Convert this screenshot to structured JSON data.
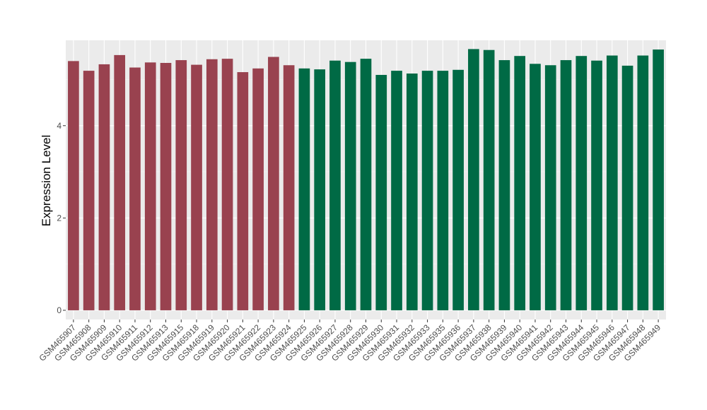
{
  "chart_data": {
    "type": "bar",
    "title": "",
    "xlabel": "",
    "ylabel": "Expression Level",
    "ylim": [
      -0.2,
      5.85
    ],
    "yticks": [
      0,
      2,
      4
    ],
    "grid": true,
    "panel_background": "#ebebeb",
    "categories": [
      "GSM465907",
      "GSM465908",
      "GSM465909",
      "GSM465910",
      "GSM465911",
      "GSM465912",
      "GSM465913",
      "GSM465915",
      "GSM465918",
      "GSM465919",
      "GSM465920",
      "GSM465921",
      "GSM465922",
      "GSM465923",
      "GSM465924",
      "GSM465925",
      "GSM465926",
      "GSM465927",
      "GSM465928",
      "GSM465929",
      "GSM465930",
      "GSM465931",
      "GSM465932",
      "GSM465933",
      "GSM465935",
      "GSM465936",
      "GSM465937",
      "GSM465938",
      "GSM465939",
      "GSM465940",
      "GSM465941",
      "GSM465942",
      "GSM465943",
      "GSM465944",
      "GSM465945",
      "GSM465946",
      "GSM465947",
      "GSM465948",
      "GSM465949"
    ],
    "values": [
      5.4,
      5.19,
      5.33,
      5.53,
      5.26,
      5.37,
      5.36,
      5.42,
      5.32,
      5.44,
      5.45,
      5.16,
      5.24,
      5.49,
      5.31,
      5.24,
      5.22,
      5.41,
      5.38,
      5.45,
      5.1,
      5.19,
      5.13,
      5.19,
      5.19,
      5.21,
      5.66,
      5.64,
      5.42,
      5.51,
      5.34,
      5.31,
      5.42,
      5.51,
      5.41,
      5.52,
      5.3,
      5.52,
      5.65
    ],
    "bar_colors": [
      "#99424f",
      "#99424f",
      "#99424f",
      "#99424f",
      "#99424f",
      "#99424f",
      "#99424f",
      "#99424f",
      "#99424f",
      "#99424f",
      "#99424f",
      "#99424f",
      "#99424f",
      "#99424f",
      "#99424f",
      "#006a45",
      "#006a45",
      "#006a45",
      "#006a45",
      "#006a45",
      "#006a45",
      "#006a45",
      "#006a45",
      "#006a45",
      "#006a45",
      "#006a45",
      "#006a45",
      "#006a45",
      "#006a45",
      "#006a45",
      "#006a45",
      "#006a45",
      "#006a45",
      "#006a45",
      "#006a45",
      "#006a45",
      "#006a45",
      "#006a45",
      "#006a45"
    ]
  }
}
